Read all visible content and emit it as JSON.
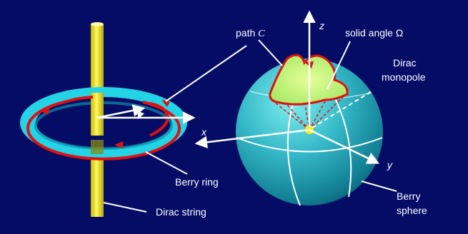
{
  "labels": {
    "path_prefix": "path",
    "path_symbol": "C",
    "solid_angle_prefix": "solid angle",
    "solid_angle_symbol": "Ω",
    "dirac_monopole_line1": "Dirac",
    "dirac_monopole_line2": "monopole",
    "axis_z": "z",
    "axis_x": "x",
    "axis_y": "y",
    "berry_ring": "Berry ring",
    "dirac_string": "Dirac string",
    "berry_sphere_line1": "Berry",
    "berry_sphere_line2": "sphere"
  },
  "colors": {
    "background": "#040c66",
    "ring": "#22ddee",
    "path": "#e01010",
    "rod": "#f4ee10",
    "monopole": "#ffee00",
    "solid_angle_fill": "#c8f070",
    "sphere_light": "#6fe6ea",
    "sphere_dark": "#0a6a7e"
  }
}
